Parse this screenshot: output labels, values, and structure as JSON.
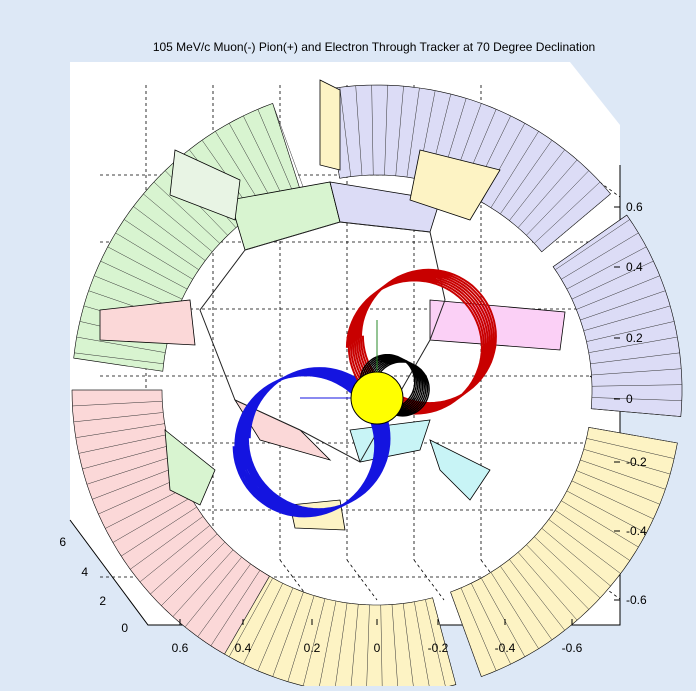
{
  "chart_data": {
    "type": "3d-line",
    "title": "105 MeV/c Muon(-) Pion(+) and Electron Through Tracker at 70 Degree Declination",
    "xlabel": "",
    "ylabel": "",
    "zlabel": "",
    "x_ticks": [
      "0.6",
      "0.4",
      "0.2",
      "0",
      "-0.2",
      "-0.4",
      "-0.6"
    ],
    "y_ticks": [
      "0.6",
      "0.4",
      "0.2",
      "0",
      "-0.2",
      "-0.4",
      "-0.6"
    ],
    "z_ticks": [
      "0",
      "2",
      "4",
      "6"
    ],
    "xlim": [
      0.7,
      -0.7
    ],
    "ylim": [
      -0.7,
      0.7
    ],
    "zlim": [
      0,
      6
    ],
    "grid": true,
    "series": [
      {
        "color": "#1414e0",
        "helix": {
          "radius": 0.21,
          "center": [
            0.17,
            -0.12
          ],
          "turns": 9
        }
      },
      {
        "color": "#c80000",
        "helix": {
          "radius": 0.2,
          "center": [
            -0.11,
            0.15
          ],
          "turns": 8
        }
      },
      {
        "color": "#000000",
        "helix": {
          "radius": 0.08,
          "center": [
            -0.03,
            0.05
          ],
          "turns": 10
        }
      }
    ],
    "colors": {
      "background": "#dde8f6",
      "axes": "#ffffff",
      "blue_track": "#1414e0",
      "red_track": "#c80000",
      "black_track": "#000000",
      "target": "#ffff00"
    }
  }
}
